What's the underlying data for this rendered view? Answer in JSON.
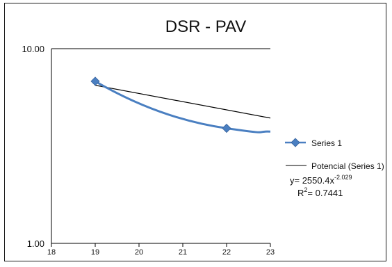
{
  "chart_data": {
    "type": "scatter",
    "title": "DSR - PAV",
    "xlabel": "",
    "ylabel": "",
    "x_ticks": [
      "18",
      "19",
      "20",
      "21",
      "22",
      "23"
    ],
    "xlim": [
      18,
      23
    ],
    "y_ticks": [
      "1.00",
      "10.00"
    ],
    "ylim": [
      1,
      10
    ],
    "y_scale": "log",
    "grid": false,
    "legend_position": "right",
    "series": [
      {
        "name": "Series 1",
        "x": [
          19,
          22
        ],
        "y": [
          6.8,
          3.9
        ],
        "color": "#4a7fc1",
        "marker": "diamond",
        "line": "smoothed, extends to x=23 at y≈3.75"
      }
    ],
    "trendline": {
      "name": "Potencial (Series 1)",
      "type": "power",
      "coefficient": 2550.4,
      "exponent": -2.029,
      "equation_prefix": "y= 2550.4x",
      "equation_exponent": "-2.029",
      "r2_prefix": "R",
      "r2_sup": "2",
      "r2_value": "= 0.7441",
      "color": "#000000"
    }
  }
}
